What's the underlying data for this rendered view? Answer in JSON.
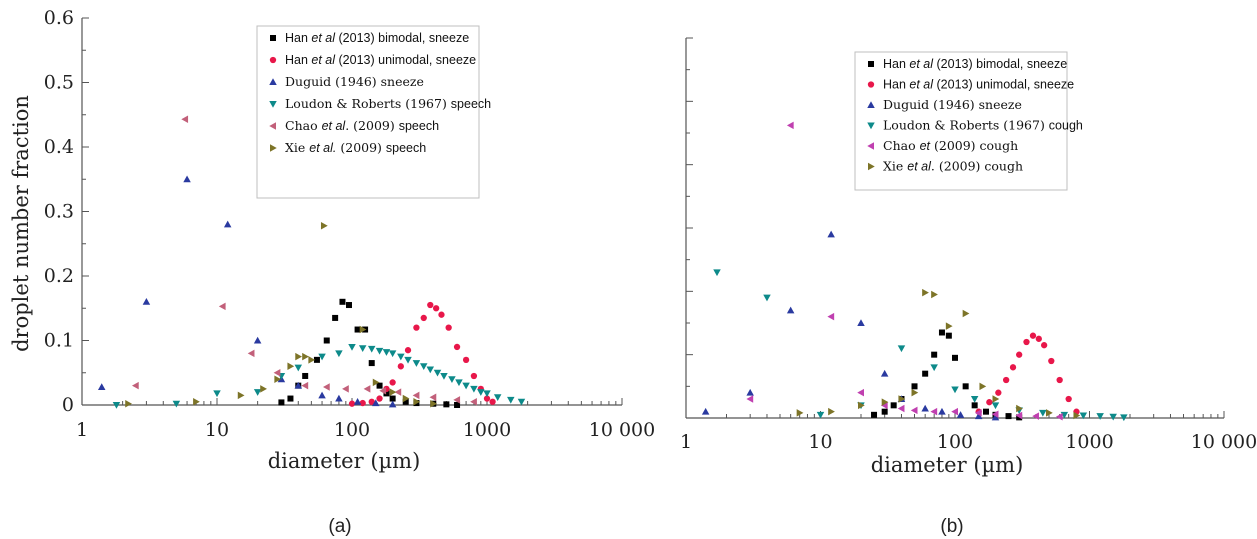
{
  "panels": [
    {
      "label": "(a)",
      "chart_data": {
        "type": "scatter",
        "xscale": "log",
        "xlim": [
          1,
          10000
        ],
        "ylim": [
          0,
          0.6
        ],
        "xticks": [
          1,
          10,
          100,
          1000,
          10000
        ],
        "xtick_labels": [
          "1",
          "10",
          "100",
          "1000",
          "10 000"
        ],
        "yticks": [
          0,
          0.1,
          0.2,
          0.3,
          0.4,
          0.5,
          0.6
        ],
        "ytick_labels": [
          "0",
          "0.1",
          "0.2",
          "0.3",
          "0.4",
          "0.5",
          "0.6"
        ],
        "xlabel": "diameter (µm)",
        "ylabel": "droplet number fraction",
        "legend_position": "top-center",
        "series": [
          {
            "legend_parts": [
              [
                "Han ",
                "n"
              ],
              [
                "et al",
                "i"
              ],
              [
                " (2013) bimodal, sneeze",
                "n"
              ]
            ],
            "marker": "square",
            "color": "#000000",
            "x": [
              30,
              35,
              40,
              45,
              55,
              65,
              75,
              85,
              95,
              110,
              125,
              140,
              160,
              180,
              200,
              250,
              300,
              400,
              500,
              600
            ],
            "y": [
              0.004,
              0.01,
              0.03,
              0.045,
              0.07,
              0.1,
              0.135,
              0.16,
              0.155,
              0.117,
              0.117,
              0.065,
              0.03,
              0.018,
              0.01,
              0.005,
              0.003,
              0.002,
              0.001,
              0.0
            ]
          },
          {
            "legend_parts": [
              [
                "Han ",
                "n"
              ],
              [
                "et al",
                "i"
              ],
              [
                " (2013) unimodal, sneeze",
                "n"
              ]
            ],
            "marker": "circle",
            "color": "#e8174a",
            "x": [
              100,
              120,
              140,
              160,
              180,
              200,
              230,
              260,
              300,
              340,
              380,
              420,
              460,
              520,
              600,
              700,
              800,
              900,
              1000,
              1100
            ],
            "y": [
              0.002,
              0.003,
              0.005,
              0.01,
              0.025,
              0.035,
              0.06,
              0.085,
              0.12,
              0.135,
              0.155,
              0.15,
              0.14,
              0.12,
              0.09,
              0.07,
              0.045,
              0.025,
              0.01,
              0.005
            ]
          },
          {
            "legend_parts": [
              [
                "Duguid  (1946)  sneeze",
                "s"
              ]
            ],
            "marker": "triangle-up",
            "color": "#2a3aa0",
            "x": [
              1.4,
              3,
              6,
              12,
              20,
              30,
              40,
              60,
              80,
              110,
              150,
              200
            ],
            "y": [
              0.028,
              0.16,
              0.35,
              0.28,
              0.1,
              0.04,
              0.03,
              0.015,
              0.01,
              0.005,
              0.003,
              0.001
            ]
          },
          {
            "legend_parts": [
              [
                "Loudon & Roberts  (1967)  ",
                "s"
              ],
              [
                "speech",
                "n"
              ]
            ],
            "marker": "triangle-down",
            "color": "#0d8a8a",
            "x": [
              1.8,
              5,
              10,
              20,
              30,
              40,
              60,
              80,
              100,
              120,
              140,
              160,
              180,
              200,
              230,
              260,
              300,
              340,
              380,
              430,
              480,
              550,
              620,
              700,
              800,
              900,
              1000,
              1200,
              1500,
              1800
            ],
            "y": [
              0.0,
              0.002,
              0.018,
              0.02,
              0.045,
              0.058,
              0.075,
              0.08,
              0.09,
              0.088,
              0.087,
              0.084,
              0.082,
              0.08,
              0.075,
              0.07,
              0.065,
              0.06,
              0.055,
              0.05,
              0.045,
              0.04,
              0.035,
              0.03,
              0.025,
              0.02,
              0.018,
              0.012,
              0.008,
              0.005
            ]
          },
          {
            "legend_parts": [
              [
                "Chao ",
                "s"
              ],
              [
                "et al",
                "i"
              ],
              [
                ".  (2009)  ",
                "s"
              ],
              [
                "speech",
                "n"
              ]
            ],
            "marker": "triangle-left",
            "color": "#c2607a",
            "x": [
              2.5,
              5.8,
              11,
              18,
              28,
              45,
              65,
              90,
              130,
              170,
              220,
              300,
              400,
              600,
              800
            ],
            "y": [
              0.03,
              0.443,
              0.153,
              0.08,
              0.05,
              0.03,
              0.028,
              0.025,
              0.025,
              0.022,
              0.02,
              0.015,
              0.012,
              0.008,
              0.005
            ]
          },
          {
            "legend_parts": [
              [
                "Xie ",
                "s"
              ],
              [
                "et al.",
                "i"
              ],
              [
                "  (2009)  ",
                "s"
              ],
              [
                "speech",
                "n"
              ]
            ],
            "marker": "triangle-right",
            "color": "#7d7428",
            "x": [
              2.2,
              7,
              15,
              22,
              28,
              35,
              40,
              45,
              50,
              62,
              120,
              150,
              200,
              250,
              300,
              400
            ],
            "y": [
              0.002,
              0.005,
              0.015,
              0.025,
              0.04,
              0.06,
              0.075,
              0.075,
              0.07,
              0.278,
              0.117,
              0.035,
              0.02,
              0.01,
              0.005,
              0.002
            ]
          }
        ]
      }
    },
    {
      "label": "(b)",
      "chart_data": {
        "type": "scatter",
        "xscale": "log",
        "xlim": [
          1,
          10000
        ],
        "ylim": [
          0,
          0.6
        ],
        "xticks": [
          1,
          10,
          100,
          1000,
          10000
        ],
        "xtick_labels": [
          "1",
          "10",
          "100",
          "1000",
          "10 000"
        ],
        "yticks": [
          0,
          0.1,
          0.2,
          0.3,
          0.4,
          0.5,
          0.6
        ],
        "xlabel": "diameter (µm)",
        "legend_position": "top-center",
        "series": [
          {
            "legend_parts": [
              [
                "Han ",
                "n"
              ],
              [
                "et al",
                "i"
              ],
              [
                " (2013) bimodal, sneeze",
                "n"
              ]
            ],
            "marker": "square",
            "color": "#000000",
            "x": [
              25,
              30,
              35,
              40,
              50,
              60,
              70,
              80,
              90,
              100,
              120,
              140,
              170,
              200,
              250,
              300
            ],
            "y": [
              0.005,
              0.01,
              0.02,
              0.03,
              0.05,
              0.07,
              0.1,
              0.135,
              0.13,
              0.095,
              0.05,
              0.02,
              0.01,
              0.005,
              0.003,
              0.001
            ]
          },
          {
            "legend_parts": [
              [
                "Han ",
                "n"
              ],
              [
                "et al",
                "i"
              ],
              [
                " (2013) unimodal, sneeze",
                "n"
              ]
            ],
            "marker": "circle",
            "color": "#e8174a",
            "x": [
              150,
              180,
              210,
              240,
              270,
              300,
              340,
              380,
              420,
              460,
              520,
              600,
              700,
              800
            ],
            "y": [
              0.01,
              0.025,
              0.04,
              0.06,
              0.08,
              0.1,
              0.12,
              0.13,
              0.125,
              0.115,
              0.09,
              0.06,
              0.03,
              0.01
            ]
          },
          {
            "legend_parts": [
              [
                "Duguid  (1946)  sneeze",
                "s"
              ]
            ],
            "marker": "triangle-up",
            "color": "#2a3aa0",
            "x": [
              1.4,
              3,
              6,
              12,
              20,
              30,
              40,
              60,
              80,
              110,
              150,
              200
            ],
            "y": [
              0.01,
              0.04,
              0.17,
              0.29,
              0.15,
              0.07,
              0.03,
              0.015,
              0.01,
              0.005,
              0.003,
              0.001
            ]
          },
          {
            "legend_parts": [
              [
                "Loudon & Roberts  (1967)  ",
                "s"
              ],
              [
                "cough",
                "n"
              ]
            ],
            "marker": "triangle-down",
            "color": "#0d8a8a",
            "x": [
              1.7,
              4,
              10,
              20,
              40,
              70,
              100,
              140,
              200,
              300,
              450,
              650,
              900,
              1200,
              1500,
              1800
            ],
            "y": [
              0.23,
              0.19,
              0.005,
              0.02,
              0.11,
              0.08,
              0.045,
              0.03,
              0.02,
              0.012,
              0.008,
              0.005,
              0.004,
              0.003,
              0.002,
              0.001
            ]
          },
          {
            "legend_parts": [
              [
                "Chao ",
                "s"
              ],
              [
                "et",
                "i"
              ],
              [
                "  (2009)  cough",
                "s"
              ]
            ],
            "marker": "triangle-left",
            "color": "#c040b0",
            "x": [
              3,
              6,
              12,
              20,
              30,
              40,
              50,
              70,
              100,
              150,
              200,
              300,
              400,
              600
            ],
            "y": [
              0.03,
              0.462,
              0.16,
              0.04,
              0.02,
              0.015,
              0.012,
              0.01,
              0.01,
              0.008,
              0.006,
              0.004,
              0.003,
              0.002
            ]
          },
          {
            "legend_parts": [
              [
                "Xie ",
                "s"
              ],
              [
                "et al",
                "i"
              ],
              [
                ".  (2009)  cough",
                "s"
              ]
            ],
            "marker": "triangle-right",
            "color": "#7d7428",
            "x": [
              7,
              12,
              20,
              30,
              40,
              50,
              60,
              70,
              90,
              120,
              160,
              200,
              300,
              500,
              800
            ],
            "y": [
              0.008,
              0.01,
              0.02,
              0.025,
              0.03,
              0.04,
              0.198,
              0.195,
              0.145,
              0.165,
              0.05,
              0.03,
              0.015,
              0.008,
              0.004
            ]
          }
        ]
      }
    }
  ]
}
